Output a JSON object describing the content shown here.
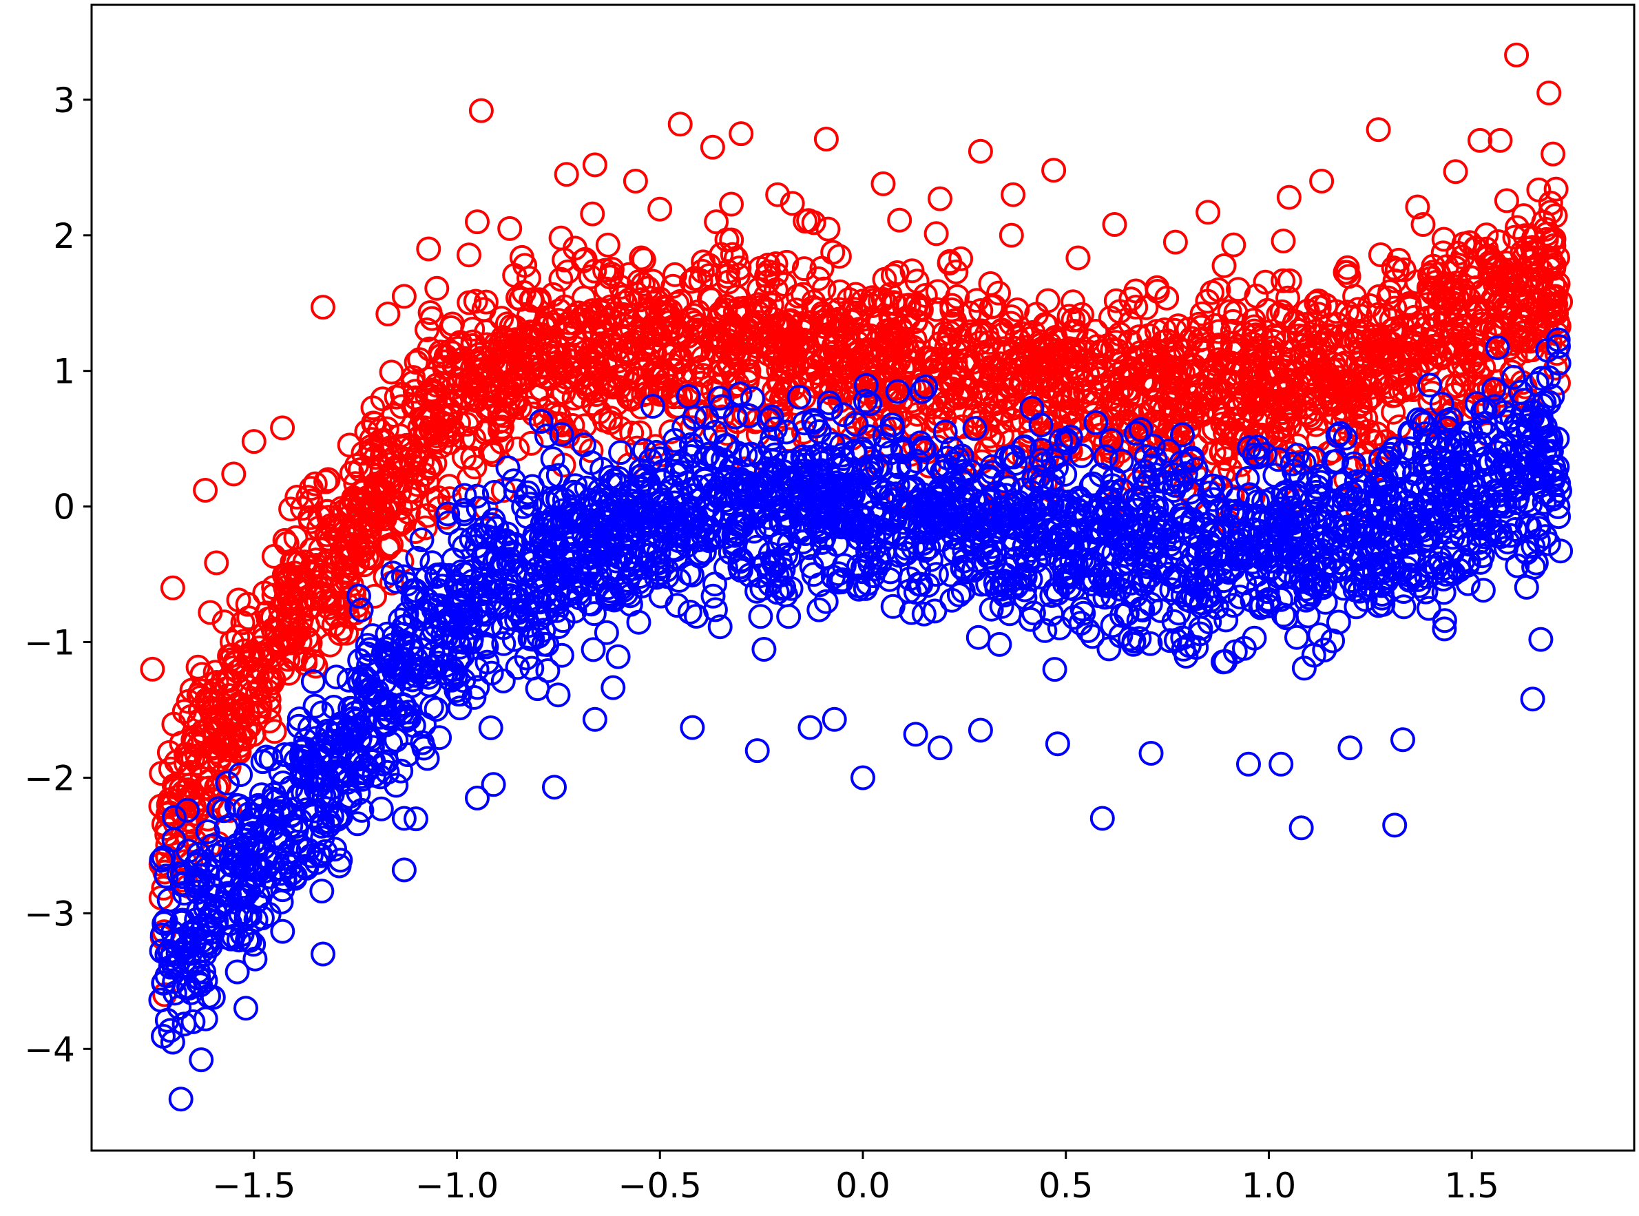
{
  "chart_data": {
    "type": "scatter",
    "title": "",
    "xlabel": "",
    "ylabel": "",
    "xlim": [
      -1.9,
      1.9
    ],
    "ylim": [
      -4.75,
      3.7
    ],
    "x_ticks": [
      {
        "value": -1.5,
        "label": "−1.5"
      },
      {
        "value": -1.0,
        "label": "−1.0"
      },
      {
        "value": -0.5,
        "label": "−0.5"
      },
      {
        "value": 0.0,
        "label": "0.0"
      },
      {
        "value": 0.5,
        "label": "0.5"
      },
      {
        "value": 1.0,
        "label": "1.0"
      },
      {
        "value": 1.5,
        "label": "1.5"
      }
    ],
    "y_ticks": [
      {
        "value": -4,
        "label": "−4"
      },
      {
        "value": -3,
        "label": "−3"
      },
      {
        "value": -2,
        "label": "−2"
      },
      {
        "value": -1,
        "label": "−1"
      },
      {
        "value": 0,
        "label": "0"
      },
      {
        "value": 1,
        "label": "1"
      },
      {
        "value": 2,
        "label": "2"
      },
      {
        "value": 3,
        "label": "3"
      }
    ],
    "grid": false,
    "legend": "none",
    "marker": "hollow-circle",
    "series": [
      {
        "color": "#ff0000",
        "trend": {
          "x": [
            -1.73,
            -1.6,
            -1.5,
            -1.4,
            -1.3,
            -1.2,
            -1.1,
            -1.0,
            -0.9,
            -0.8,
            -0.7,
            -0.6,
            -0.5,
            -0.4,
            -0.3,
            -0.2,
            -0.1,
            0.0,
            0.1,
            0.2,
            0.3,
            0.4,
            0.5,
            0.6,
            0.7,
            0.8,
            0.9,
            1.0,
            1.1,
            1.2,
            1.3,
            1.4,
            1.5,
            1.6,
            1.72
          ],
          "y": [
            -2.4,
            -1.7,
            -1.2,
            -0.7,
            -0.3,
            0.1,
            0.45,
            0.75,
            0.95,
            1.1,
            1.15,
            1.2,
            1.22,
            1.22,
            1.2,
            1.18,
            1.15,
            1.1,
            1.05,
            1.0,
            0.95,
            0.9,
            0.88,
            0.85,
            0.83,
            0.83,
            0.85,
            0.9,
            0.97,
            1.05,
            1.12,
            1.2,
            1.3,
            1.45,
            1.65
          ],
          "spread": 0.35
        },
        "outliers": [
          {
            "x": -1.7,
            "y": -0.6
          },
          {
            "x": -1.62,
            "y": 0.12
          },
          {
            "x": -1.55,
            "y": 0.24
          },
          {
            "x": -1.5,
            "y": 0.48
          },
          {
            "x": -1.43,
            "y": 0.58
          },
          {
            "x": -1.33,
            "y": 1.47
          },
          {
            "x": -1.17,
            "y": 1.42
          },
          {
            "x": -1.13,
            "y": 1.55
          },
          {
            "x": -1.07,
            "y": 1.9
          },
          {
            "x": -0.95,
            "y": 2.1
          },
          {
            "x": -0.94,
            "y": 2.92
          },
          {
            "x": -0.87,
            "y": 2.05
          },
          {
            "x": -0.73,
            "y": 2.45
          },
          {
            "x": -0.66,
            "y": 2.52
          },
          {
            "x": -0.56,
            "y": 2.4
          },
          {
            "x": -0.45,
            "y": 2.82
          },
          {
            "x": -0.37,
            "y": 2.65
          },
          {
            "x": -0.3,
            "y": 2.75
          },
          {
            "x": -0.21,
            "y": 2.3
          },
          {
            "x": -0.09,
            "y": 2.71
          },
          {
            "x": 0.05,
            "y": 2.38
          },
          {
            "x": 0.19,
            "y": 2.27
          },
          {
            "x": 0.29,
            "y": 2.62
          },
          {
            "x": 0.37,
            "y": 2.3
          },
          {
            "x": 0.47,
            "y": 2.48
          },
          {
            "x": 0.62,
            "y": 2.08
          },
          {
            "x": 0.77,
            "y": 1.95
          },
          {
            "x": 0.85,
            "y": 2.17
          },
          {
            "x": 1.05,
            "y": 2.28
          },
          {
            "x": 1.13,
            "y": 2.4
          },
          {
            "x": 1.27,
            "y": 2.78
          },
          {
            "x": 1.38,
            "y": 2.08
          },
          {
            "x": 1.46,
            "y": 2.47
          },
          {
            "x": 1.52,
            "y": 2.7
          },
          {
            "x": 1.57,
            "y": 2.7
          },
          {
            "x": 1.61,
            "y": 3.33
          },
          {
            "x": 1.69,
            "y": 3.05
          },
          {
            "x": 1.7,
            "y": 2.6
          },
          {
            "x": -1.72,
            "y": -3.6
          },
          {
            "x": -1.75,
            "y": -1.2
          }
        ]
      },
      {
        "color": "#0000ff",
        "trend": {
          "x": [
            -1.73,
            -1.6,
            -1.5,
            -1.4,
            -1.3,
            -1.2,
            -1.1,
            -1.0,
            -0.9,
            -0.8,
            -0.7,
            -0.6,
            -0.5,
            -0.4,
            -0.3,
            -0.2,
            -0.1,
            0.0,
            0.1,
            0.2,
            0.3,
            0.4,
            0.5,
            0.6,
            0.7,
            0.8,
            0.9,
            1.0,
            1.1,
            1.2,
            1.3,
            1.4,
            1.5,
            1.6,
            1.72
          ],
          "y": [
            -3.3,
            -2.9,
            -2.6,
            -2.3,
            -1.9,
            -1.5,
            -1.1,
            -0.8,
            -0.55,
            -0.4,
            -0.28,
            -0.18,
            -0.1,
            -0.05,
            0.0,
            0.02,
            0.02,
            0.0,
            -0.05,
            -0.1,
            -0.15,
            -0.2,
            -0.25,
            -0.28,
            -0.3,
            -0.32,
            -0.32,
            -0.3,
            -0.25,
            -0.2,
            -0.12,
            -0.02,
            0.1,
            0.25,
            0.4
          ],
          "spread": 0.35
        },
        "outliers": [
          {
            "x": -1.7,
            "y": -3.95
          },
          {
            "x": -1.68,
            "y": -4.37
          },
          {
            "x": -1.65,
            "y": -3.8
          },
          {
            "x": -1.63,
            "y": -4.08
          },
          {
            "x": -1.6,
            "y": -3.62
          },
          {
            "x": -1.52,
            "y": -3.7
          },
          {
            "x": -1.51,
            "y": -3.2
          },
          {
            "x": -1.33,
            "y": -3.3
          },
          {
            "x": -1.29,
            "y": -2.65
          },
          {
            "x": -1.13,
            "y": -2.68
          },
          {
            "x": -1.13,
            "y": -2.3
          },
          {
            "x": -0.95,
            "y": -2.15
          },
          {
            "x": -0.91,
            "y": -2.05
          },
          {
            "x": -0.76,
            "y": -2.07
          },
          {
            "x": -0.66,
            "y": -1.57
          },
          {
            "x": -0.42,
            "y": -1.63
          },
          {
            "x": -0.26,
            "y": -1.8
          },
          {
            "x": -0.13,
            "y": -1.63
          },
          {
            "x": -0.07,
            "y": -1.57
          },
          {
            "x": 0.0,
            "y": -2.0
          },
          {
            "x": 0.13,
            "y": -1.68
          },
          {
            "x": 0.19,
            "y": -1.78
          },
          {
            "x": 0.29,
            "y": -1.65
          },
          {
            "x": 0.48,
            "y": -1.75
          },
          {
            "x": 0.59,
            "y": -2.3
          },
          {
            "x": 0.71,
            "y": -1.82
          },
          {
            "x": 0.95,
            "y": -1.9
          },
          {
            "x": 1.03,
            "y": -1.9
          },
          {
            "x": 1.08,
            "y": -2.37
          },
          {
            "x": 1.2,
            "y": -1.78
          },
          {
            "x": 1.31,
            "y": -2.35
          },
          {
            "x": 1.33,
            "y": -1.72
          },
          {
            "x": 1.65,
            "y": -1.42
          },
          {
            "x": 1.67,
            "y": -0.98
          }
        ]
      }
    ]
  }
}
